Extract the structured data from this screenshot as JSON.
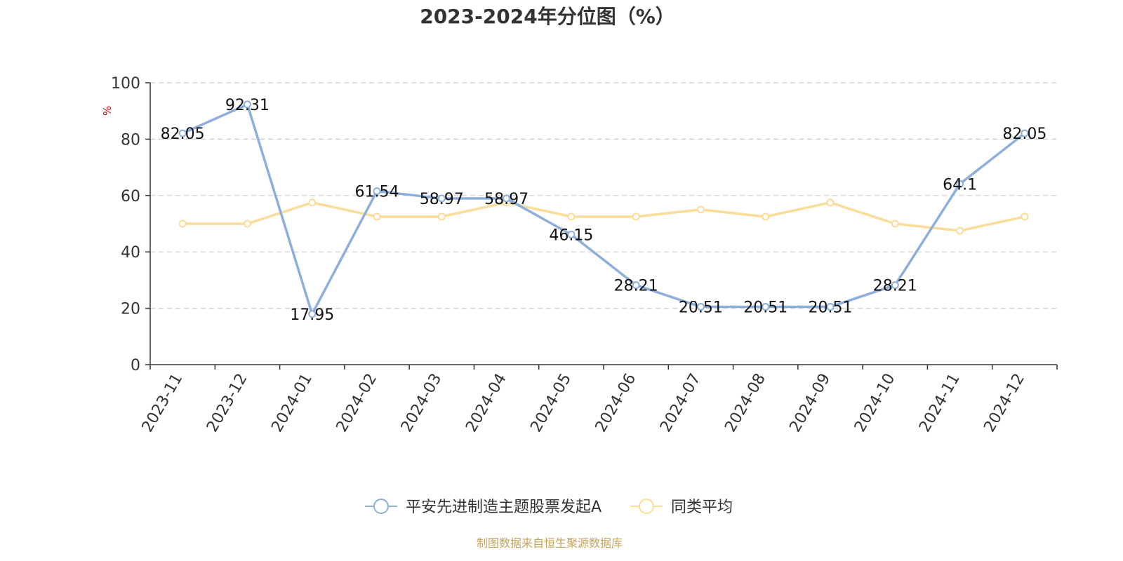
{
  "chart_data": {
    "type": "line",
    "title": "2023-2024年分位图（%）",
    "y_unit": "%",
    "ylim": [
      0,
      100
    ],
    "y_ticks": [
      0,
      20,
      40,
      60,
      80,
      100
    ],
    "grid": "horizontal-dashed",
    "legend_position": "bottom-center",
    "categories": [
      "2023-11",
      "2023-12",
      "2024-01",
      "2024-02",
      "2024-03",
      "2024-04",
      "2024-05",
      "2024-06",
      "2024-07",
      "2024-08",
      "2024-09",
      "2024-10",
      "2024-11",
      "2024-12"
    ],
    "series": [
      {
        "name": "平安先进制造主题股票发起A",
        "color": "#8eaedb",
        "values": [
          82.05,
          92.31,
          17.95,
          61.54,
          58.97,
          58.97,
          46.15,
          28.21,
          20.51,
          20.51,
          20.51,
          28.21,
          64.1,
          82.05
        ],
        "labels": [
          "82.05",
          "92.31",
          "17.95",
          "61.54",
          "58.97",
          "58.97",
          "46.15",
          "28.21",
          "20.51",
          "20.51",
          "20.51",
          "28.21",
          "64.1",
          "82.05"
        ]
      },
      {
        "name": "同类平均",
        "color": "#fbdc98",
        "values": [
          50,
          50,
          57.5,
          52.5,
          52.5,
          57.5,
          52.5,
          52.5,
          55,
          52.5,
          57.5,
          50,
          47.5,
          52.5
        ]
      }
    ]
  },
  "footer": {
    "source": "制图数据来自恒生聚源数据库"
  }
}
